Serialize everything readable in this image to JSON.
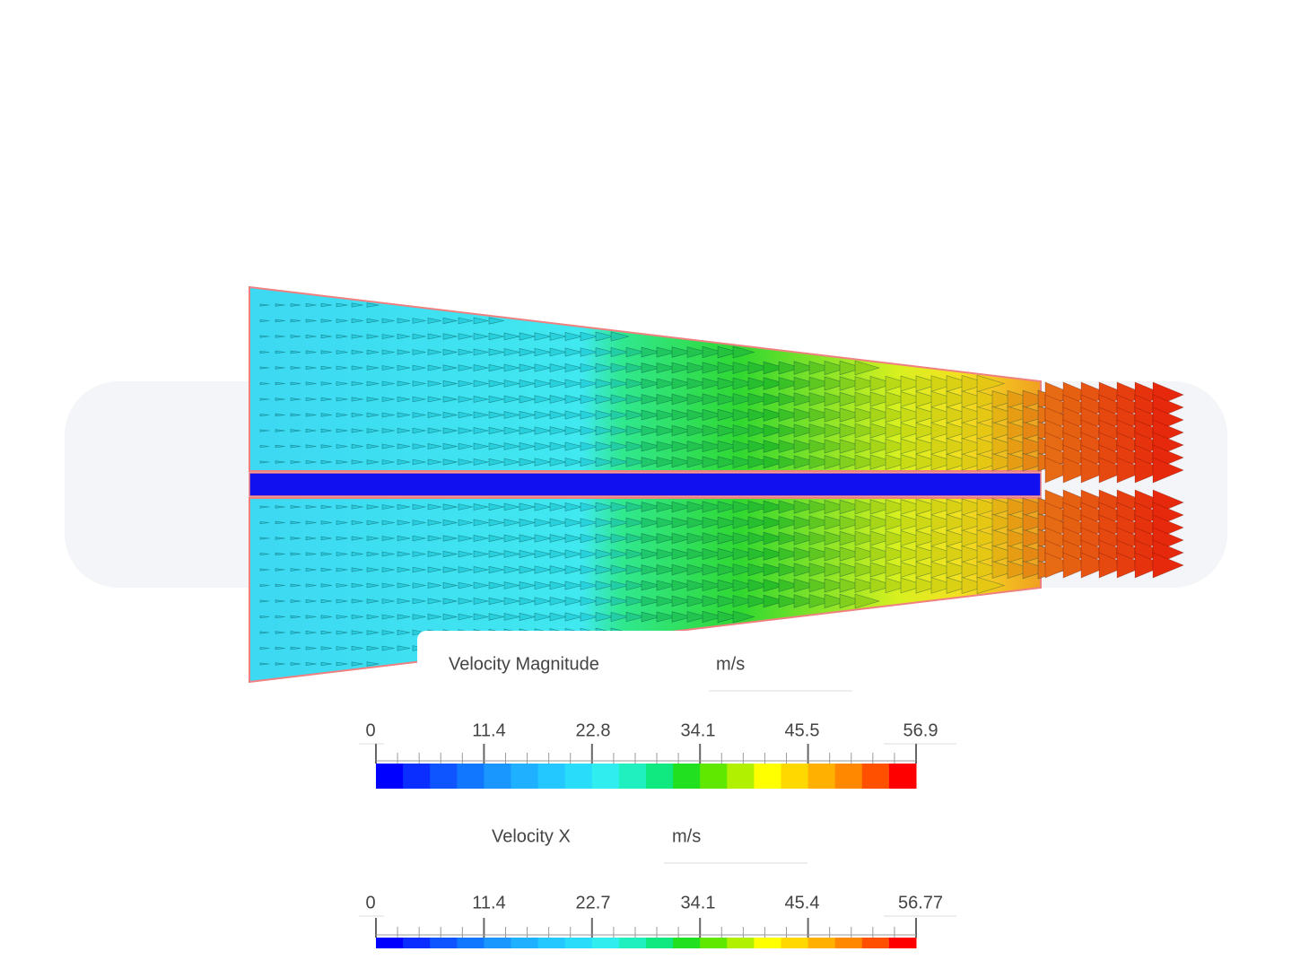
{
  "legends": [
    {
      "title": "Velocity Magnitude",
      "unit": "m/s",
      "ticks": [
        "0",
        "11.4",
        "22.8",
        "34.1",
        "45.5",
        "56.9"
      ]
    },
    {
      "title": "Velocity X",
      "unit": "m/s",
      "ticks": [
        "0",
        "11.4",
        "22.7",
        "34.1",
        "45.4",
        "56.77"
      ]
    }
  ]
}
